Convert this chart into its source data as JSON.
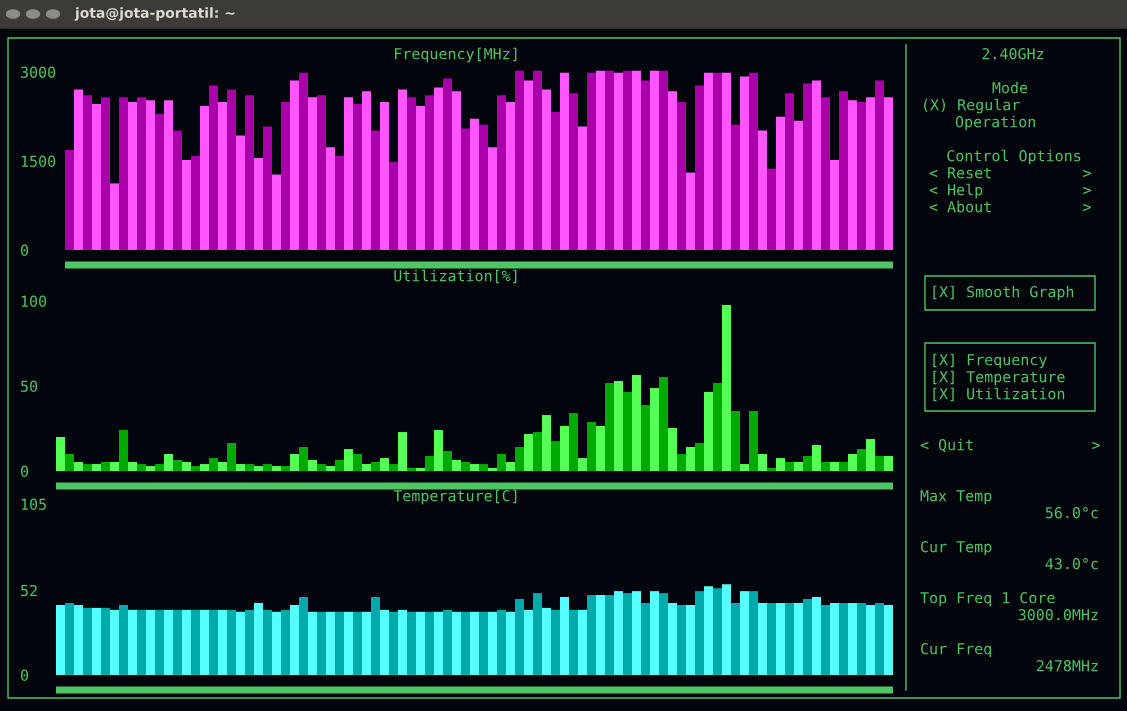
{
  "chart_data": [
    {
      "type": "bar",
      "title": "Frequency[MHz]",
      "tick_labels": "y",
      "ylim": [
        0,
        3100
      ],
      "yticks": [
        0,
        1500,
        3000
      ],
      "categories": [
        null,
        null,
        null,
        null,
        null,
        null,
        null,
        null,
        null,
        null,
        null,
        null,
        null,
        null,
        null,
        null,
        null,
        null,
        null,
        null,
        null,
        null,
        null,
        null,
        null,
        null,
        null,
        null,
        null,
        null,
        null,
        null,
        null,
        null,
        null,
        null,
        null,
        null,
        null,
        null,
        null,
        null,
        null,
        null,
        null,
        null,
        null,
        null,
        null,
        null,
        null,
        null,
        null,
        null,
        null,
        null,
        null,
        null,
        null,
        null,
        null,
        null,
        null,
        null,
        null,
        null,
        null,
        null,
        null,
        null,
        null,
        null,
        null,
        null,
        null,
        null,
        null,
        null,
        null,
        null,
        null,
        null,
        null,
        null,
        null,
        null,
        null,
        null,
        null,
        null,
        null,
        null
      ],
      "values": [
        1683,
        2706,
        2607,
        2459,
        2574,
        1122,
        2574,
        2492,
        2574,
        2525,
        2294,
        2525,
        2013,
        1518,
        1584,
        2426,
        2772,
        2492,
        2706,
        1931,
        2607,
        1551,
        2079,
        1271,
        2492,
        2855,
        2987,
        2574,
        2607,
        1733,
        1584,
        2574,
        2459,
        2673,
        2013,
        2492,
        1485,
        2706,
        2574,
        2426,
        2607,
        2739,
        2888,
        2673,
        2046,
        2211,
        2112,
        1733,
        2607,
        2492,
        3020,
        2855,
        3020,
        2706,
        2327,
        2987,
        2640,
        2079,
        2987,
        3020,
        3020,
        2987,
        3020,
        3020,
        2855,
        3020,
        3020,
        2673,
        2492,
        1304,
        2772,
        2987,
        2987,
        2987,
        2112,
        2921,
        2987,
        2013,
        1370,
        2244,
        2640,
        2178,
        2805,
        2855,
        2574,
        1518,
        2673,
        2525,
        2492,
        2574,
        2855,
        2574
      ],
      "colors": [
        "#aa00aa",
        "#ff55ff",
        "#aa00aa",
        "#ff55ff",
        "#aa00aa",
        "#ff55ff",
        "#aa00aa",
        "#ff55ff",
        "#aa00aa",
        "#ff55ff",
        "#aa00aa",
        "#ff55ff",
        "#aa00aa",
        "#ff55ff",
        "#aa00aa",
        "#ff55ff",
        "#aa00aa",
        "#ff55ff",
        "#aa00aa",
        "#ff55ff",
        "#aa00aa",
        "#ff55ff",
        "#aa00aa",
        "#ff55ff",
        "#aa00aa",
        "#ff55ff",
        "#aa00aa",
        "#ff55ff",
        "#aa00aa",
        "#ff55ff",
        "#aa00aa",
        "#ff55ff",
        "#aa00aa",
        "#ff55ff",
        "#aa00aa",
        "#ff55ff",
        "#aa00aa",
        "#ff55ff",
        "#aa00aa",
        "#ff55ff",
        "#aa00aa",
        "#ff55ff",
        "#aa00aa",
        "#ff55ff",
        "#aa00aa",
        "#ff55ff",
        "#aa00aa",
        "#ff55ff",
        "#aa00aa",
        "#ff55ff",
        "#aa00aa",
        "#ff55ff",
        "#aa00aa",
        "#ff55ff",
        "#aa00aa",
        "#ff55ff",
        "#aa00aa",
        "#ff55ff",
        "#aa00aa",
        "#ff55ff",
        "#aa00aa",
        "#ff55ff",
        "#aa00aa",
        "#ff55ff",
        "#aa00aa",
        "#ff55ff",
        "#aa00aa",
        "#ff55ff",
        "#aa00aa",
        "#ff55ff",
        "#aa00aa",
        "#ff55ff",
        "#aa00aa",
        "#ff55ff",
        "#aa00aa",
        "#ff55ff",
        "#aa00aa",
        "#ff55ff",
        "#aa00aa",
        "#ff55ff",
        "#aa00aa",
        "#ff55ff",
        "#aa00aa",
        "#ff55ff",
        "#aa00aa",
        "#ff55ff",
        "#aa00aa",
        "#ff55ff",
        "#aa00aa",
        "#ff55ff",
        "#aa00aa",
        "#ff55ff"
      ]
    },
    {
      "type": "bar",
      "title": "Utilization[%]",
      "tick_labels": "y",
      "ylim": [
        0,
        100
      ],
      "yticks": [
        0,
        50,
        100
      ],
      "categories": [
        null,
        null,
        null,
        null,
        null,
        null,
        null,
        null,
        null,
        null,
        null,
        null,
        null,
        null,
        null,
        null,
        null,
        null,
        null,
        null,
        null,
        null,
        null,
        null,
        null,
        null,
        null,
        null,
        null,
        null,
        null,
        null,
        null,
        null,
        null,
        null,
        null,
        null,
        null,
        null,
        null,
        null,
        null,
        null,
        null,
        null,
        null,
        null,
        null,
        null,
        null,
        null,
        null,
        null,
        null,
        null,
        null,
        null,
        null,
        null,
        null,
        null,
        null,
        null,
        null,
        null,
        null,
        null,
        null,
        null,
        null,
        null,
        null,
        null,
        null,
        null,
        null,
        null,
        null,
        null,
        null,
        null,
        null,
        null,
        null,
        null,
        null,
        null,
        null,
        null,
        null,
        null,
        null
      ],
      "values": [
        20.0,
        10.0,
        5.3,
        4.1,
        4.1,
        5.3,
        5.3,
        24.1,
        5.3,
        4.1,
        2.9,
        4.1,
        10.0,
        6.5,
        5.3,
        2.9,
        4.1,
        7.6,
        5.3,
        16.5,
        4.1,
        4.1,
        2.9,
        4.1,
        2.9,
        2.9,
        10.0,
        14.1,
        6.5,
        4.1,
        2.9,
        6.5,
        12.9,
        10.0,
        4.1,
        5.3,
        7.6,
        4.1,
        22.9,
        1.8,
        1.8,
        8.8,
        24.1,
        11.8,
        6.5,
        5.3,
        4.1,
        4.1,
        1.8,
        10.0,
        5.3,
        14.1,
        21.8,
        22.9,
        32.9,
        17.6,
        26.5,
        34.1,
        7.6,
        28.8,
        26.5,
        51.8,
        52.9,
        46.5,
        56.5,
        38.8,
        48.8,
        55.3,
        25.3,
        10.0,
        14.1,
        16.5,
        46.5,
        51.8,
        97.6,
        35.3,
        4.1,
        35.3,
        10.0,
        1.8,
        7.6,
        5.3,
        5.3,
        8.8,
        15.3,
        5.3,
        5.3,
        5.3,
        10.0,
        12.9,
        18.8,
        8.8,
        8.8
      ],
      "colors": [
        "#55ff55",
        "#00aa00",
        "#55ff55",
        "#00aa00",
        "#55ff55",
        "#00aa00",
        "#55ff55",
        "#00aa00",
        "#55ff55",
        "#00aa00",
        "#55ff55",
        "#00aa00",
        "#55ff55",
        "#00aa00",
        "#55ff55",
        "#00aa00",
        "#55ff55",
        "#00aa00",
        "#55ff55",
        "#00aa00",
        "#55ff55",
        "#00aa00",
        "#55ff55",
        "#00aa00",
        "#55ff55",
        "#00aa00",
        "#55ff55",
        "#00aa00",
        "#55ff55",
        "#00aa00",
        "#55ff55",
        "#00aa00",
        "#55ff55",
        "#00aa00",
        "#55ff55",
        "#00aa00",
        "#55ff55",
        "#00aa00",
        "#55ff55",
        "#00aa00",
        "#55ff55",
        "#00aa00",
        "#55ff55",
        "#00aa00",
        "#55ff55",
        "#00aa00",
        "#55ff55",
        "#00aa00",
        "#55ff55",
        "#00aa00",
        "#55ff55",
        "#00aa00",
        "#55ff55",
        "#00aa00",
        "#55ff55",
        "#00aa00",
        "#55ff55",
        "#00aa00",
        "#55ff55",
        "#00aa00",
        "#55ff55",
        "#00aa00",
        "#55ff55",
        "#00aa00",
        "#55ff55",
        "#00aa00",
        "#55ff55",
        "#00aa00",
        "#55ff55",
        "#00aa00",
        "#55ff55",
        "#00aa00",
        "#55ff55",
        "#00aa00",
        "#55ff55",
        "#00aa00",
        "#55ff55",
        "#00aa00",
        "#55ff55",
        "#00aa00",
        "#55ff55",
        "#00aa00",
        "#55ff55",
        "#00aa00",
        "#55ff55",
        "#00aa00",
        "#55ff55",
        "#00aa00",
        "#55ff55",
        "#00aa00",
        "#55ff55",
        "#00aa00",
        "#55ff55"
      ]
    },
    {
      "type": "bar",
      "title": "Temperature[C]",
      "tick_labels": "y",
      "ylim": [
        0,
        105
      ],
      "yticks": [
        0,
        52,
        105
      ],
      "categories": [
        null,
        null,
        null,
        null,
        null,
        null,
        null,
        null,
        null,
        null,
        null,
        null,
        null,
        null,
        null,
        null,
        null,
        null,
        null,
        null,
        null,
        null,
        null,
        null,
        null,
        null,
        null,
        null,
        null,
        null,
        null,
        null,
        null,
        null,
        null,
        null,
        null,
        null,
        null,
        null,
        null,
        null,
        null,
        null,
        null,
        null,
        null,
        null,
        null,
        null,
        null,
        null,
        null,
        null,
        null,
        null,
        null,
        null,
        null,
        null,
        null,
        null,
        null,
        null,
        null,
        null,
        null,
        null,
        null,
        null,
        null,
        null,
        null,
        null,
        null,
        null,
        null,
        null,
        null,
        null,
        null,
        null,
        null,
        null,
        null,
        null,
        null,
        null,
        null,
        null,
        null,
        null,
        null
      ],
      "values": [
        43.0,
        44.2,
        43.0,
        41.2,
        41.2,
        41.2,
        40.0,
        43.0,
        40.0,
        40.0,
        40.0,
        40.0,
        40.0,
        40.0,
        40.0,
        40.0,
        40.0,
        40.0,
        40.0,
        40.0,
        38.8,
        40.0,
        44.2,
        40.0,
        38.8,
        40.0,
        43.0,
        47.9,
        38.8,
        38.8,
        38.8,
        38.8,
        38.8,
        38.8,
        38.8,
        47.9,
        40.0,
        38.8,
        40.0,
        38.8,
        38.8,
        38.8,
        38.8,
        40.0,
        38.8,
        38.8,
        38.8,
        38.8,
        38.8,
        40.0,
        38.8,
        46.7,
        40.0,
        50.3,
        41.2,
        40.0,
        47.9,
        40.0,
        40.0,
        49.1,
        49.1,
        49.1,
        51.5,
        50.3,
        51.5,
        44.2,
        51.5,
        50.3,
        44.2,
        43.0,
        43.0,
        51.5,
        54.5,
        53.3,
        55.8,
        44.2,
        51.5,
        51.5,
        44.2,
        44.2,
        44.2,
        44.2,
        44.2,
        46.7,
        47.9,
        43.0,
        44.2,
        44.2,
        44.2,
        44.2,
        43.0,
        44.2,
        43.0
      ],
      "colors": [
        "#55ffff",
        "#00aaaa",
        "#55ffff",
        "#00aaaa",
        "#55ffff",
        "#00aaaa",
        "#55ffff",
        "#00aaaa",
        "#55ffff",
        "#00aaaa",
        "#55ffff",
        "#00aaaa",
        "#55ffff",
        "#00aaaa",
        "#55ffff",
        "#00aaaa",
        "#55ffff",
        "#00aaaa",
        "#55ffff",
        "#00aaaa",
        "#55ffff",
        "#00aaaa",
        "#55ffff",
        "#00aaaa",
        "#55ffff",
        "#00aaaa",
        "#55ffff",
        "#00aaaa",
        "#55ffff",
        "#00aaaa",
        "#55ffff",
        "#00aaaa",
        "#55ffff",
        "#00aaaa",
        "#55ffff",
        "#00aaaa",
        "#55ffff",
        "#00aaaa",
        "#55ffff",
        "#00aaaa",
        "#55ffff",
        "#00aaaa",
        "#55ffff",
        "#00aaaa",
        "#55ffff",
        "#00aaaa",
        "#55ffff",
        "#00aaaa",
        "#55ffff",
        "#00aaaa",
        "#55ffff",
        "#00aaaa",
        "#55ffff",
        "#00aaaa",
        "#55ffff",
        "#00aaaa",
        "#55ffff",
        "#00aaaa",
        "#55ffff",
        "#00aaaa",
        "#55ffff",
        "#00aaaa",
        "#55ffff",
        "#00aaaa",
        "#55ffff",
        "#00aaaa",
        "#55ffff",
        "#00aaaa",
        "#55ffff",
        "#00aaaa",
        "#55ffff",
        "#00aaaa",
        "#55ffff",
        "#00aaaa",
        "#55ffff",
        "#00aaaa",
        "#55ffff",
        "#00aaaa",
        "#55ffff",
        "#00aaaa",
        "#55ffff",
        "#00aaaa",
        "#55ffff",
        "#00aaaa",
        "#55ffff",
        "#00aaaa",
        "#55ffff",
        "#00aaaa",
        "#55ffff",
        "#00aaaa",
        "#55ffff",
        "#00aaaa",
        "#55ffff"
      ]
    },
    {
      "type": "other",
      "title": "jota@jota-portatil: ~",
      "annotations": [
        "2.40GHz",
        "Mode",
        "(X) Regular",
        "Operation",
        "Control Options",
        "< Reset          >",
        "< Help           >",
        "< About          >",
        "[X] Smooth Graph",
        "[X] Frequency",
        "[X] Temperature",
        "[X] Utilization",
        "< Quit             >",
        "Max Temp",
        "56.0°c",
        "Cur Temp",
        "43.0°c",
        "Top Freq 1 Core",
        "3000.0MHz",
        "Cur Freq",
        "2478MHz"
      ]
    }
  ]
}
